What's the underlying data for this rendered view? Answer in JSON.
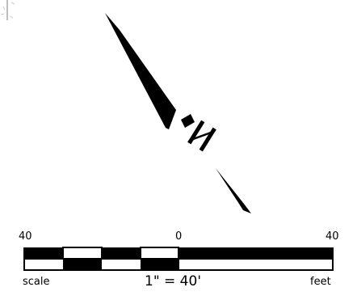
{
  "north_arrow": {
    "letter": "N"
  },
  "scale_bar": {
    "tick_left": "40",
    "tick_center": "0",
    "tick_right": "40",
    "left_caption": "scale",
    "ratio": "1\" = 40'",
    "unit": "feet"
  },
  "colors": {
    "ink": "#000000",
    "paper": "#ffffff",
    "corner_fragment": "#bdbdbd"
  },
  "icons": {
    "north": "north-arrow-icon",
    "fragment": "drawing-fragment-icon"
  }
}
